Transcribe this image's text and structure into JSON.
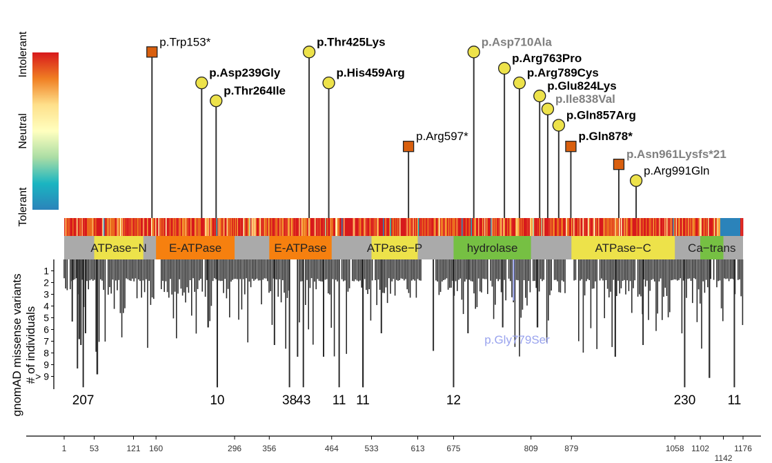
{
  "chart_data": {
    "type": "lollipop",
    "x_range": [
      1,
      1176
    ],
    "x_ticks": [
      {
        "value": 1,
        "label": "1"
      },
      {
        "value": 53,
        "label": "53"
      },
      {
        "value": 121,
        "label": "121"
      },
      {
        "value": 160,
        "label": "160"
      },
      {
        "value": 296,
        "label": "296"
      },
      {
        "value": 356,
        "label": "356"
      },
      {
        "value": 464,
        "label": "464"
      },
      {
        "value": 533,
        "label": "533"
      },
      {
        "value": 613,
        "label": "613"
      },
      {
        "value": 675,
        "label": "675"
      },
      {
        "value": 809,
        "label": "809"
      },
      {
        "value": 879,
        "label": "879"
      },
      {
        "value": 1058,
        "label": "1058"
      },
      {
        "value": 1102,
        "label": "1102"
      },
      {
        "value": 1142,
        "label": "1142"
      },
      {
        "value": 1176,
        "label": "1176"
      }
    ],
    "tolerance_legend": {
      "labels": [
        "Intolerant",
        "Neutral",
        "Tolerant"
      ],
      "colors": [
        "#d7191c",
        "#f07f23",
        "#fee08b",
        "#ffffbf",
        "#abdda4",
        "#1ab5c1",
        "#2b83ba"
      ]
    },
    "domains": [
      {
        "name": "ATPase−N",
        "start": 53,
        "end": 138,
        "color": "#ede24a"
      },
      {
        "name": "E-ATPase",
        "start": 160,
        "end": 296,
        "color": "#f6800f"
      },
      {
        "name": "E-ATPase",
        "start": 356,
        "end": 464,
        "color": "#f6800f"
      },
      {
        "name": "ATPase−P",
        "start": 533,
        "end": 613,
        "color": "#ede24a"
      },
      {
        "name": "hydrolase",
        "start": 675,
        "end": 809,
        "color": "#76c043"
      },
      {
        "name": "ATPase−C",
        "start": 879,
        "end": 1058,
        "color": "#ede24a"
      },
      {
        "name": "Ca−trans",
        "start": 1102,
        "end": 1142,
        "color": "#76c043"
      }
    ],
    "variants": [
      {
        "label": "p.Trp153*",
        "pos": 153,
        "type": "truncating",
        "bold": false,
        "color": "#000000",
        "height": 0.88
      },
      {
        "label": "p.Asp239Gly",
        "pos": 239,
        "type": "missense",
        "bold": true,
        "color": "#000000",
        "height": 0.69
      },
      {
        "label": "p.Thr264Ile",
        "pos": 264,
        "type": "missense",
        "bold": true,
        "color": "#000000",
        "height": 0.58
      },
      {
        "label": "p.Thr425Lys",
        "pos": 425,
        "type": "missense",
        "bold": true,
        "color": "#000000",
        "height": 0.88
      },
      {
        "label": "p.His459Arg",
        "pos": 459,
        "type": "missense",
        "bold": true,
        "color": "#000000",
        "height": 0.69
      },
      {
        "label": "p.Arg597*",
        "pos": 597,
        "type": "truncating",
        "bold": false,
        "color": "#000000",
        "height": 0.3
      },
      {
        "label": "p.Asp710Ala",
        "pos": 710,
        "type": "missense",
        "bold": true,
        "color": "#808080",
        "height": 0.88
      },
      {
        "label": "p.Arg763Pro",
        "pos": 763,
        "type": "missense",
        "bold": true,
        "color": "#000000",
        "height": 0.78
      },
      {
        "label": "p.Arg789Cys",
        "pos": 789,
        "type": "missense",
        "bold": true,
        "color": "#000000",
        "height": 0.69
      },
      {
        "label": "p.Glu824Lys",
        "pos": 824,
        "type": "missense",
        "bold": true,
        "color": "#000000",
        "height": 0.61
      },
      {
        "label": "p.Ile838Val",
        "pos": 838,
        "type": "missense",
        "bold": true,
        "color": "#808080",
        "height": 0.53
      },
      {
        "label": "p.Gln857Arg",
        "pos": 857,
        "type": "missense",
        "bold": true,
        "color": "#000000",
        "height": 0.43
      },
      {
        "label": "p.Gln878*",
        "pos": 878,
        "type": "truncating",
        "bold": true,
        "color": "#000000",
        "height": 0.3
      },
      {
        "label": "p.Asn961Lysfs*21",
        "pos": 961,
        "type": "truncating",
        "bold": true,
        "color": "#808080",
        "height": 0.19
      },
      {
        "label": "p.Arg991Gln",
        "pos": 991,
        "type": "missense",
        "bold": false,
        "color": "#000000",
        "height": 0.09
      }
    ],
    "gnomad": {
      "ylabel_line1": "gnomAD missense variants",
      "ylabel_line2": "# of individuals",
      "y_ticks": [
        "1",
        "2",
        "3",
        "4",
        "5",
        "6",
        "7",
        "8",
        "9",
        "> 9"
      ],
      "highlight": {
        "label": "p.Gly779Ser",
        "pos": 779,
        "value": 3.2,
        "color": "#99a3ee"
      },
      "count_labels": [
        {
          "pos": 34,
          "text": "207"
        },
        {
          "pos": 266,
          "text": "10"
        },
        {
          "pos": 391,
          "text": "38"
        },
        {
          "pos": 415,
          "text": "43"
        },
        {
          "pos": 477,
          "text": "11"
        },
        {
          "pos": 518,
          "text": "11"
        },
        {
          "pos": 675,
          "text": "12"
        },
        {
          "pos": 1075,
          "text": "230"
        },
        {
          "pos": 1161,
          "text": "11"
        }
      ]
    }
  }
}
